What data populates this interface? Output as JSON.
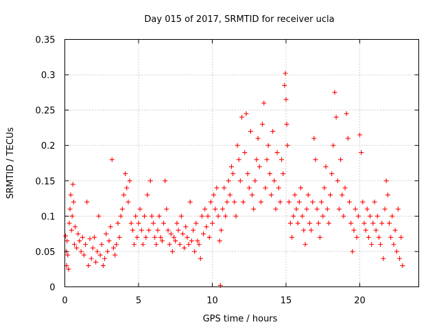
{
  "chart_data": {
    "type": "scatter",
    "title": "Day 015 of 2017, SRMTID for receiver ucla",
    "xlabel": "GPS time / hours",
    "ylabel": "SRMTID / TECUs",
    "xlim": [
      0,
      24
    ],
    "ylim": [
      0,
      0.35
    ],
    "x_ticks": [
      0,
      5,
      10,
      15,
      20
    ],
    "x_tick_labels": [
      "0",
      "5",
      "10",
      "15",
      "20"
    ],
    "y_ticks": [
      0,
      0.05,
      0.1,
      0.15,
      0.2,
      0.25,
      0.3,
      0.35
    ],
    "y_tick_labels": [
      "0",
      "0.05",
      "0.1",
      "0.15",
      "0.2",
      "0.25",
      "0.3",
      "0.35"
    ],
    "grid": true,
    "marker": "+",
    "marker_color": "#ff0000",
    "series": [
      {
        "name": "SRMTID",
        "points": [
          [
            0.05,
            0.072
          ],
          [
            0.1,
            0.05
          ],
          [
            0.12,
            0.03
          ],
          [
            0.15,
            0.065
          ],
          [
            0.2,
            0.045
          ],
          [
            0.25,
            0.025
          ],
          [
            0.3,
            0.09
          ],
          [
            0.35,
            0.11
          ],
          [
            0.4,
            0.13
          ],
          [
            0.45,
            0.08
          ],
          [
            0.5,
            0.1
          ],
          [
            0.55,
            0.145
          ],
          [
            0.6,
            0.12
          ],
          [
            0.65,
            0.06
          ],
          [
            0.7,
            0.085
          ],
          [
            0.8,
            0.055
          ],
          [
            0.9,
            0.075
          ],
          [
            1.0,
            0.065
          ],
          [
            1.1,
            0.05
          ],
          [
            1.2,
            0.07
          ],
          [
            1.3,
            0.045
          ],
          [
            1.4,
            0.06
          ],
          [
            1.5,
            0.12
          ],
          [
            1.6,
            0.03
          ],
          [
            1.7,
            0.068
          ],
          [
            1.8,
            0.04
          ],
          [
            1.9,
            0.055
          ],
          [
            2.0,
            0.07
          ],
          [
            2.1,
            0.035
          ],
          [
            2.2,
            0.05
          ],
          [
            2.3,
            0.1
          ],
          [
            2.4,
            0.045
          ],
          [
            2.5,
            0.06
          ],
          [
            2.6,
            0.03
          ],
          [
            2.7,
            0.04
          ],
          [
            2.8,
            0.075
          ],
          [
            2.9,
            0.05
          ],
          [
            3.0,
            0.065
          ],
          [
            3.1,
            0.085
          ],
          [
            3.2,
            0.18
          ],
          [
            3.3,
            0.055
          ],
          [
            3.4,
            0.045
          ],
          [
            3.5,
            0.06
          ],
          [
            3.6,
            0.09
          ],
          [
            3.7,
            0.07
          ],
          [
            3.8,
            0.1
          ],
          [
            3.9,
            0.11
          ],
          [
            4.0,
            0.13
          ],
          [
            4.1,
            0.16
          ],
          [
            4.2,
            0.14
          ],
          [
            4.3,
            0.12
          ],
          [
            4.4,
            0.15
          ],
          [
            4.5,
            0.09
          ],
          [
            4.6,
            0.08
          ],
          [
            4.7,
            0.06
          ],
          [
            4.8,
            0.1
          ],
          [
            4.9,
            0.07
          ],
          [
            5.0,
            0.09
          ],
          [
            5.1,
            0.11
          ],
          [
            5.2,
            0.08
          ],
          [
            5.3,
            0.06
          ],
          [
            5.4,
            0.1
          ],
          [
            5.5,
            0.07
          ],
          [
            5.6,
            0.13
          ],
          [
            5.7,
            0.08
          ],
          [
            5.8,
            0.15
          ],
          [
            5.9,
            0.1
          ],
          [
            6.0,
            0.09
          ],
          [
            6.1,
            0.07
          ],
          [
            6.2,
            0.06
          ],
          [
            6.3,
            0.08
          ],
          [
            6.4,
            0.1
          ],
          [
            6.5,
            0.07
          ],
          [
            6.6,
            0.065
          ],
          [
            6.7,
            0.09
          ],
          [
            6.8,
            0.15
          ],
          [
            6.9,
            0.11
          ],
          [
            7.0,
            0.08
          ],
          [
            7.1,
            0.06
          ],
          [
            7.2,
            0.075
          ],
          [
            7.3,
            0.05
          ],
          [
            7.4,
            0.07
          ],
          [
            7.5,
            0.065
          ],
          [
            7.6,
            0.09
          ],
          [
            7.7,
            0.08
          ],
          [
            7.8,
            0.06
          ],
          [
            7.9,
            0.1
          ],
          [
            8.0,
            0.075
          ],
          [
            8.1,
            0.055
          ],
          [
            8.2,
            0.085
          ],
          [
            8.3,
            0.07
          ],
          [
            8.4,
            0.06
          ],
          [
            8.5,
            0.12
          ],
          [
            8.6,
            0.065
          ],
          [
            8.7,
            0.08
          ],
          [
            8.8,
            0.05
          ],
          [
            8.9,
            0.09
          ],
          [
            9.0,
            0.065
          ],
          [
            9.1,
            0.06
          ],
          [
            9.2,
            0.04
          ],
          [
            9.3,
            0.1
          ],
          [
            9.4,
            0.075
          ],
          [
            9.5,
            0.11
          ],
          [
            9.6,
            0.085
          ],
          [
            9.7,
            0.1
          ],
          [
            9.8,
            0.07
          ],
          [
            9.9,
            0.12
          ],
          [
            10.0,
            0.09
          ],
          [
            10.1,
            0.13
          ],
          [
            10.2,
            0.11
          ],
          [
            10.3,
            0.14
          ],
          [
            10.4,
            0.1
          ],
          [
            10.5,
            0.065
          ],
          [
            10.55,
            0.002
          ],
          [
            10.6,
            0.08
          ],
          [
            10.7,
            0.11
          ],
          [
            10.8,
            0.14
          ],
          [
            10.9,
            0.1
          ],
          [
            11.0,
            0.12
          ],
          [
            11.1,
            0.15
          ],
          [
            11.2,
            0.13
          ],
          [
            11.3,
            0.17
          ],
          [
            11.4,
            0.16
          ],
          [
            11.5,
            0.12
          ],
          [
            11.6,
            0.1
          ],
          [
            11.7,
            0.2
          ],
          [
            11.8,
            0.18
          ],
          [
            11.9,
            0.15
          ],
          [
            12.0,
            0.24
          ],
          [
            12.1,
            0.12
          ],
          [
            12.2,
            0.19
          ],
          [
            12.3,
            0.245
          ],
          [
            12.4,
            0.16
          ],
          [
            12.5,
            0.14
          ],
          [
            12.6,
            0.22
          ],
          [
            12.7,
            0.13
          ],
          [
            12.8,
            0.11
          ],
          [
            12.9,
            0.15
          ],
          [
            13.0,
            0.18
          ],
          [
            13.1,
            0.21
          ],
          [
            13.2,
            0.17
          ],
          [
            13.3,
            0.12
          ],
          [
            13.4,
            0.23
          ],
          [
            13.5,
            0.26
          ],
          [
            13.6,
            0.14
          ],
          [
            13.7,
            0.18
          ],
          [
            13.8,
            0.2
          ],
          [
            13.9,
            0.16
          ],
          [
            14.0,
            0.13
          ],
          [
            14.1,
            0.22
          ],
          [
            14.2,
            0.15
          ],
          [
            14.3,
            0.11
          ],
          [
            14.4,
            0.19
          ],
          [
            14.5,
            0.14
          ],
          [
            14.6,
            0.12
          ],
          [
            14.7,
            0.18
          ],
          [
            14.8,
            0.16
          ],
          [
            14.9,
            0.285
          ],
          [
            14.95,
            0.302
          ],
          [
            15.0,
            0.265
          ],
          [
            15.05,
            0.23
          ],
          [
            15.1,
            0.2
          ],
          [
            15.2,
            0.12
          ],
          [
            15.3,
            0.09
          ],
          [
            15.4,
            0.07
          ],
          [
            15.5,
            0.1
          ],
          [
            15.6,
            0.13
          ],
          [
            15.7,
            0.11
          ],
          [
            15.8,
            0.09
          ],
          [
            15.9,
            0.12
          ],
          [
            16.0,
            0.14
          ],
          [
            16.1,
            0.1
          ],
          [
            16.2,
            0.08
          ],
          [
            16.3,
            0.06
          ],
          [
            16.4,
            0.11
          ],
          [
            16.5,
            0.13
          ],
          [
            16.6,
            0.09
          ],
          [
            16.7,
            0.08
          ],
          [
            16.8,
            0.12
          ],
          [
            16.9,
            0.21
          ],
          [
            17.0,
            0.18
          ],
          [
            17.1,
            0.11
          ],
          [
            17.2,
            0.09
          ],
          [
            17.3,
            0.07
          ],
          [
            17.4,
            0.12
          ],
          [
            17.5,
            0.1
          ],
          [
            17.6,
            0.14
          ],
          [
            17.7,
            0.17
          ],
          [
            17.8,
            0.11
          ],
          [
            17.9,
            0.09
          ],
          [
            18.0,
            0.13
          ],
          [
            18.1,
            0.16
          ],
          [
            18.2,
            0.2
          ],
          [
            18.3,
            0.275
          ],
          [
            18.4,
            0.24
          ],
          [
            18.5,
            0.15
          ],
          [
            18.6,
            0.11
          ],
          [
            18.7,
            0.18
          ],
          [
            18.8,
            0.13
          ],
          [
            18.9,
            0.1
          ],
          [
            19.0,
            0.14
          ],
          [
            19.1,
            0.245
          ],
          [
            19.2,
            0.21
          ],
          [
            19.3,
            0.12
          ],
          [
            19.4,
            0.09
          ],
          [
            19.5,
            0.05
          ],
          [
            19.6,
            0.08
          ],
          [
            19.7,
            0.11
          ],
          [
            19.8,
            0.07
          ],
          [
            19.9,
            0.1
          ],
          [
            20.0,
            0.215
          ],
          [
            20.1,
            0.19
          ],
          [
            20.2,
            0.12
          ],
          [
            20.3,
            0.09
          ],
          [
            20.4,
            0.08
          ],
          [
            20.5,
            0.11
          ],
          [
            20.6,
            0.07
          ],
          [
            20.7,
            0.1
          ],
          [
            20.8,
            0.06
          ],
          [
            20.9,
            0.09
          ],
          [
            21.0,
            0.12
          ],
          [
            21.1,
            0.08
          ],
          [
            21.2,
            0.1
          ],
          [
            21.3,
            0.07
          ],
          [
            21.4,
            0.06
          ],
          [
            21.5,
            0.09
          ],
          [
            21.6,
            0.04
          ],
          [
            21.7,
            0.11
          ],
          [
            21.8,
            0.15
          ],
          [
            21.9,
            0.13
          ],
          [
            22.0,
            0.09
          ],
          [
            22.1,
            0.07
          ],
          [
            22.2,
            0.1
          ],
          [
            22.3,
            0.06
          ],
          [
            22.4,
            0.08
          ],
          [
            22.5,
            0.05
          ],
          [
            22.6,
            0.11
          ],
          [
            22.7,
            0.04
          ],
          [
            22.8,
            0.07
          ],
          [
            22.9,
            0.03
          ]
        ]
      }
    ]
  }
}
